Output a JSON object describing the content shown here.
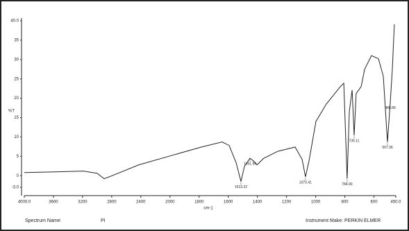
{
  "chart_data": {
    "type": "line",
    "xlabel": "cm-1",
    "ylabel": "%T",
    "x_scale_break": {
      "value": 2000,
      "factor": 2
    },
    "x_reversed": true,
    "x": [
      4000,
      3571,
      3190,
      2999,
      2904,
      2808,
      2427,
      2000,
      1785,
      1642,
      1594,
      1546,
      1513,
      1489,
      1451,
      1427,
      1403,
      1356,
      1260,
      1141,
      1093,
      1070,
      1046,
      998,
      927,
      831,
      807,
      784,
      769,
      750,
      736,
      722,
      688,
      664,
      617,
      569,
      536,
      507,
      488,
      474,
      460
    ],
    "series": [
      {
        "color": "#222222",
        "values": [
          0.8,
          1.0,
          1.2,
          0.6,
          -0.8,
          -0.1,
          2.8,
          5.1,
          7.4,
          8.7,
          7.8,
          3.3,
          -1.5,
          2.4,
          4.5,
          3.8,
          2.8,
          4.5,
          6.3,
          7.4,
          4.2,
          -0.3,
          3.8,
          14.0,
          18.5,
          23.0,
          23.9,
          -0.8,
          16.7,
          22.1,
          10.4,
          21.2,
          23.0,
          27.5,
          31.0,
          30.2,
          25.7,
          8.7,
          18.9,
          27.5,
          39.1
        ]
      }
    ],
    "xlim": [
      4000,
      450
    ],
    "ylim": [
      -3,
      40
    ],
    "xticks": [
      {
        "value": 4000,
        "label": "4000.0"
      },
      3600,
      3200,
      2800,
      2400,
      2000,
      1800,
      1600,
      1400,
      1200,
      1000,
      800,
      600,
      {
        "value": 450,
        "label": "450.0"
      }
    ],
    "yticks": [
      {
        "value": -3,
        "label": "-3.0"
      },
      0,
      5,
      10,
      15,
      20,
      25,
      30,
      35,
      {
        "value": 40,
        "label": "40.0"
      }
    ],
    "annotations": [
      {
        "x": 1513,
        "y": -1.5,
        "text": "1513.22"
      },
      {
        "x": 1451,
        "y": 4.5,
        "text": "1451.94"
      },
      {
        "x": 1070,
        "y": -0.3,
        "text": "1070.41"
      },
      {
        "x": 784,
        "y": -0.8,
        "text": "784.90"
      },
      {
        "x": 736,
        "y": 10.4,
        "text": "736.11"
      },
      {
        "x": 507,
        "y": 8.7,
        "text": "507.36"
      },
      {
        "x": 488,
        "y": 18.9,
        "text": "488.89"
      }
    ],
    "footer": {
      "spectrum_label": "Spectrum Name:",
      "spectrum_name": "PI",
      "instrument": "Instrument Make: PERKIN ELMER"
    }
  }
}
